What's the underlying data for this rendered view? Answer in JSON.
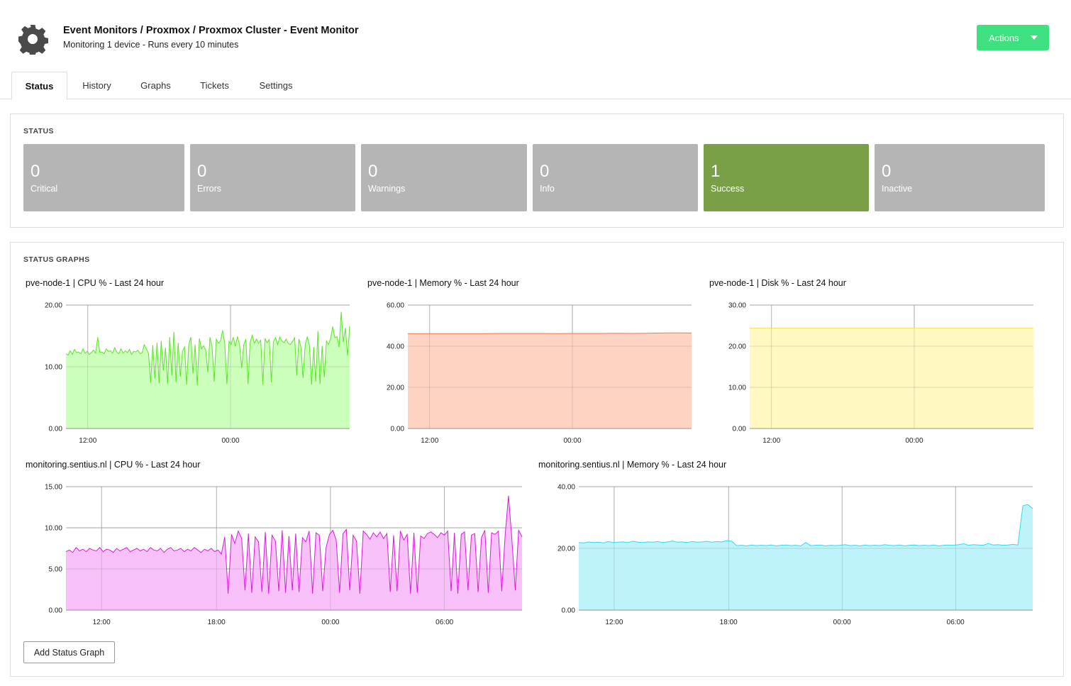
{
  "header": {
    "title": "Event Monitors / Proxmox / Proxmox Cluster - Event Monitor",
    "subtitle": "Monitoring 1 device - Runs every 10 minutes",
    "actions_label": "Actions",
    "icon": "gear-icon"
  },
  "tabs": [
    {
      "label": "Status",
      "active": true
    },
    {
      "label": "History"
    },
    {
      "label": "Graphs"
    },
    {
      "label": "Tickets"
    },
    {
      "label": "Settings"
    }
  ],
  "status": {
    "title": "STATUS",
    "counts": [
      {
        "value": "0",
        "label": "Critical"
      },
      {
        "value": "0",
        "label": "Errors"
      },
      {
        "value": "0",
        "label": "Warnings"
      },
      {
        "value": "0",
        "label": "Info"
      },
      {
        "value": "1",
        "label": "Success"
      },
      {
        "value": "0",
        "label": "Inactive"
      }
    ],
    "colors": {
      "neutral": "#b5b5b5",
      "success": "#79a046"
    }
  },
  "graphs": {
    "title": "STATUS GRAPHS",
    "add_button": "Add Status Graph"
  },
  "chart_data": [
    {
      "type": "area",
      "title": "pve-node-1 | CPU % - Last 24 hour",
      "yticks": [
        "0.00",
        "10.00",
        "20.00"
      ],
      "ylim": [
        0,
        20
      ],
      "xticks": [
        "12:00",
        "00:00"
      ],
      "grid": true,
      "color": {
        "line": "#5ce52a",
        "fill": "#ccffbb"
      },
      "values": [
        12.1,
        11.9,
        12.6,
        12.0,
        12.8,
        12.3,
        12.4,
        12.1,
        12.9,
        12.2,
        12.5,
        12.0,
        12.3,
        12.7,
        12.2,
        14.8,
        12.3,
        12.4,
        12.1,
        12.9,
        12.5,
        12.6,
        12.2,
        13.1,
        12.4,
        12.1,
        12.9,
        12.2,
        12.6,
        12.3,
        12.8,
        12.0,
        12.5,
        12.4,
        12.7,
        12.1,
        12.3,
        13.6,
        12.9,
        12.2,
        7.4,
        13.5,
        8.1,
        13.9,
        7.3,
        14.2,
        9.4,
        13.1,
        7.2,
        14.8,
        8.6,
        15.7,
        7.5,
        13.9,
        8.4,
        12.5,
        13.2,
        7.1,
        13.5,
        14.8,
        8.9,
        13.6,
        7.0,
        14.6,
        12.9,
        13.4,
        12.7,
        9.1,
        14.8,
        13.2,
        7.6,
        14.5,
        13.8,
        14.2,
        15.9,
        13.7,
        7.2,
        14.1,
        13.6,
        14.8,
        13.3,
        14.9,
        13.5,
        9.8,
        13.6,
        14.5,
        7.2,
        14.0,
        15.1,
        13.8,
        14.5,
        13.8,
        14.3,
        7.1,
        14.6,
        13.9,
        14.4,
        7.5,
        14.1,
        14.7,
        13.6,
        14.8,
        14.2,
        13.9,
        14.5,
        13.8,
        13.6,
        14.1,
        14.7,
        8.6,
        14.5,
        13.2,
        8.2,
        13.6,
        14.9,
        13.4,
        7.1,
        13.2,
        7.6,
        15.8,
        7.2,
        13.4,
        8.3,
        14.2,
        13.6,
        14.6,
        16.5,
        14.7,
        14.9,
        13.2,
        18.9,
        14.0,
        16.3,
        11.8,
        16.6
      ]
    },
    {
      "type": "area",
      "title": "pve-node-1 | Memory % - Last 24 hour",
      "yticks": [
        "0.00",
        "20.00",
        "40.00",
        "60.00"
      ],
      "ylim": [
        0,
        60
      ],
      "xticks": [
        "12:00",
        "00:00"
      ],
      "grid": true,
      "color": {
        "line": "#f07a4a",
        "fill": "#ffd3c2"
      },
      "values": [
        46.1,
        46.1,
        46.1,
        46.1,
        46.1,
        46.1,
        46.2,
        46.2,
        46.2,
        46.2,
        46.1,
        46.2,
        46.2,
        46.2,
        46.3,
        46.2,
        46.3,
        46.4,
        46.5,
        46.4
      ]
    },
    {
      "type": "area",
      "title": "pve-node-1 | Disk % - Last 24 hour",
      "yticks": [
        "0.00",
        "10.00",
        "20.00",
        "30.00"
      ],
      "ylim": [
        0,
        30
      ],
      "xticks": [
        "12:00",
        "00:00"
      ],
      "grid": true,
      "color": {
        "line": "#f0e070",
        "fill": "#fff8c0"
      },
      "values": [
        24.4,
        24.4,
        24.4,
        24.4,
        24.4
      ]
    },
    {
      "type": "area",
      "title": "monitoring.sentius.nl | CPU % - Last 24 hour",
      "yticks": [
        "0.00",
        "5.00",
        "10.00",
        "15.00"
      ],
      "ylim": [
        0,
        15
      ],
      "xticks": [
        "12:00",
        "18:00",
        "00:00",
        "06:00"
      ],
      "grid": true,
      "color": {
        "line": "#d91ed9",
        "fill": "#f8c0f8"
      },
      "values": [
        7.1,
        7.3,
        7.0,
        7.6,
        7.2,
        7.4,
        7.1,
        7.5,
        7.3,
        7.2,
        7.6,
        7.1,
        7.4,
        7.3,
        7.0,
        7.5,
        7.2,
        7.4,
        7.6,
        7.1,
        7.3,
        7.5,
        7.2,
        7.4,
        7.1,
        7.6,
        7.3,
        7.2,
        7.5,
        7.0,
        7.4,
        7.6,
        7.2,
        7.3,
        7.5,
        7.1,
        7.4,
        7.2,
        7.6,
        7.3,
        7.0,
        7.4,
        7.2,
        7.5,
        7.1,
        7.3,
        6.8,
        8.9,
        2.0,
        9.2,
        8.1,
        9.6,
        8.7,
        2.4,
        9.3,
        2.1,
        8.9,
        8.3,
        2.2,
        9.5,
        2.0,
        9.1,
        8.4,
        2.3,
        9.7,
        2.1,
        9.0,
        2.4,
        9.3,
        2.2,
        8.8,
        8.3,
        9.6,
        2.0,
        9.4,
        9.1,
        2.3,
        7.6,
        9.2,
        9.7,
        8.5,
        2.1,
        9.3,
        9.8,
        2.4,
        9.1,
        8.4,
        2.0,
        9.6,
        9.2,
        8.6,
        9.4,
        8.9,
        9.5,
        8.7,
        9.3,
        2.2,
        9.1,
        2.3,
        9.6,
        8.5,
        9.2,
        2.0,
        9.4,
        2.1,
        9.0,
        8.7,
        9.3,
        9.5,
        9.2,
        8.8,
        9.4,
        9.1,
        9.6,
        2.3,
        9.4,
        2.0,
        9.2,
        9.5,
        2.4,
        9.1,
        9.3,
        2.2,
        8.8,
        9.7,
        2.1,
        9.4,
        9.2,
        9.6,
        2.3,
        9.1,
        13.9,
        8.6,
        2.4,
        9.7,
        8.9
      ]
    },
    {
      "type": "area",
      "title": "monitoring.sentius.nl | Memory % - Last 24 hour",
      "yticks": [
        "0.00",
        "20.00",
        "40.00"
      ],
      "ylim": [
        0,
        40
      ],
      "xticks": [
        "12:00",
        "18:00",
        "00:00",
        "06:00"
      ],
      "grid": true,
      "color": {
        "line": "#33d8f0",
        "fill": "#bff3fc"
      },
      "values": [
        21.9,
        21.8,
        22.1,
        21.9,
        22.0,
        21.8,
        22.2,
        21.9,
        22.0,
        22.1,
        21.9,
        22.3,
        22.0,
        21.9,
        22.1,
        22.0,
        22.2,
        21.9,
        22.1,
        22.4,
        22.0,
        22.1,
        21.9,
        22.2,
        22.0,
        22.1,
        22.3,
        22.0,
        22.2,
        22.1,
        22.5,
        22.3,
        20.9,
        21.0,
        20.8,
        21.1,
        20.9,
        21.0,
        20.9,
        21.1,
        20.8,
        21.0,
        21.1,
        20.9,
        21.0,
        20.8,
        21.9,
        20.9,
        21.0,
        21.1,
        20.8,
        21.0,
        20.9,
        21.0,
        21.2,
        20.9,
        21.0,
        20.8,
        21.1,
        20.9,
        21.0,
        20.9,
        21.2,
        21.0,
        20.9,
        21.1,
        20.8,
        21.0,
        21.1,
        20.9,
        21.0,
        20.9,
        21.1,
        20.8,
        21.0,
        21.1,
        21.0,
        21.2,
        21.5,
        21.0,
        21.2,
        21.1,
        21.0,
        21.6,
        21.1,
        21.2,
        21.0,
        21.1,
        21.3,
        21.1,
        33.8,
        34.2,
        32.9
      ]
    }
  ]
}
